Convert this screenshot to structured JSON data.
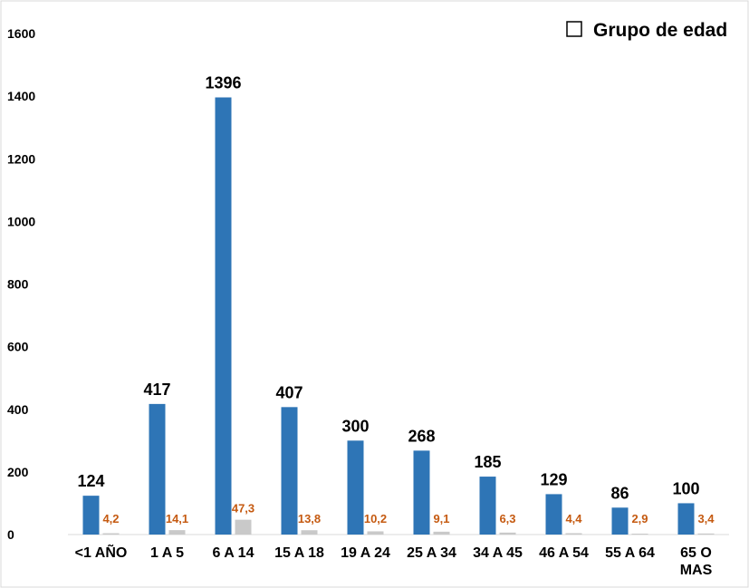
{
  "chart_data": {
    "type": "bar",
    "title": "",
    "xlabel": "",
    "ylabel": "",
    "ylim": [
      0,
      1600
    ],
    "yticks": [
      0,
      200,
      400,
      600,
      800,
      1000,
      1200,
      1400,
      1600
    ],
    "grid": false,
    "legend_position": "top-right",
    "legend_label": "Grupo de edad",
    "categories": [
      "<1 AÑO",
      "1 A 5",
      "6 A 14",
      "15 A 18",
      "19 A 24",
      "25 A 34",
      "34 A 45",
      "46 A 54",
      "55 A 64",
      "65 O MAS"
    ],
    "series": [
      {
        "values": [
          124,
          417,
          1396,
          407,
          300,
          268,
          185,
          129,
          86,
          100
        ],
        "labels": [
          "124",
          "417",
          "1396",
          "407",
          "300",
          "268",
          "185",
          "129",
          "86",
          "100"
        ],
        "color": "#2e75b6",
        "label_color": "#000000"
      },
      {
        "values": [
          4.2,
          14.1,
          47.3,
          13.8,
          10.2,
          9.1,
          6.3,
          4.4,
          2.9,
          3.4
        ],
        "labels": [
          "4,2",
          "14,1",
          "47,3",
          "13,8",
          "10,2",
          "9,1",
          "6,3",
          "4,4",
          "2,9",
          "3,4"
        ],
        "color": "#c9c9c9",
        "label_color": "#c55a11"
      }
    ]
  }
}
